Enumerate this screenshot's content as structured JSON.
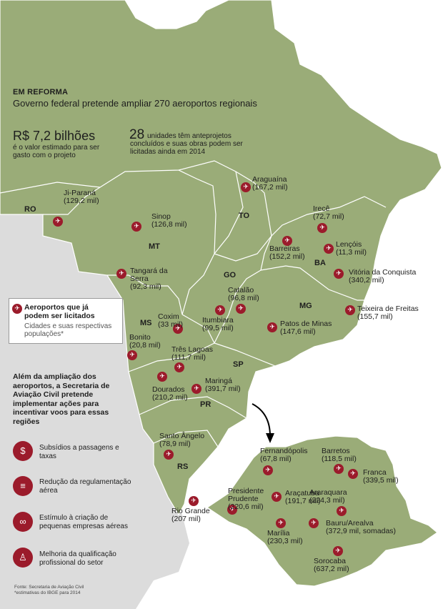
{
  "colors": {
    "map_fill": "#9aac78",
    "map_stroke": "#ffffff",
    "background": "#ffffff",
    "side_panel": "#dcdcdc",
    "pin": "#9b1b2b",
    "leader_line": "#000000"
  },
  "header": {
    "kicker": "EM REFORMA",
    "title": "Governo federal pretende ampliar 270 aeroportos regionais"
  },
  "cost": {
    "value": "R$ 7,2 bilhões",
    "text": "é o valor estimado para ser gasto com o projeto"
  },
  "units": {
    "number": "28",
    "text": "unidades têm anteprojetos concluídos e suas obras podem ser licitadas ainda em 2014"
  },
  "legend": {
    "icon": "airplane-icon",
    "title": "Aeroportos que já podem ser licitados",
    "subtitle": "Cidades e suas respectivas populações*"
  },
  "actions": {
    "intro": "Além da ampliação dos aeroportos, a Secretaria de Aviação Civil pretende implementar ações para incentivar voos para essas regiões",
    "items": [
      {
        "icon": "money-icon",
        "glyph": "$",
        "text": "Subsídios a passagens e taxas"
      },
      {
        "icon": "document-icon",
        "glyph": "≡",
        "text": "Redução da regulamentação aérea"
      },
      {
        "icon": "handshake-icon",
        "glyph": "∞",
        "text": "Estímulo à criação de pequenas empresas aéreas"
      },
      {
        "icon": "person-icon",
        "glyph": "♙",
        "text": "Melhoria da qualificação profissional do setor"
      }
    ]
  },
  "states": {
    "RO": "RO",
    "MT": "MT",
    "TO": "TO",
    "GO": "GO",
    "BA": "BA",
    "MG": "MG",
    "MS": "MS",
    "SP": "SP",
    "PR": "PR",
    "RS": "RS"
  },
  "cities": {
    "ji_parana": {
      "name": "Ji-Paraná",
      "pop": "(129,2 mil)"
    },
    "sinop": {
      "name": "Sinop",
      "pop": "(126,8 mil)"
    },
    "tangara": {
      "name": "Tangará da Serra",
      "pop": "(92,3 mil)"
    },
    "araguaina": {
      "name": "Araguaína",
      "pop": "(167,2 mil)"
    },
    "irece": {
      "name": "Irecê",
      "pop": "(72,7 mil)"
    },
    "barreiras": {
      "name": "Barreiras",
      "pop": "(152,2 mil)"
    },
    "lencois": {
      "name": "Lençóis",
      "pop": "(11,3 mil)"
    },
    "vitoria_conquista": {
      "name": "Vitória da Conquista",
      "pop": "(340,2 mil)"
    },
    "teixeira": {
      "name": "Teixeira de Freitas",
      "pop": "(155,7 mil)"
    },
    "catalao": {
      "name": "Catalão",
      "pop": "(96,8 mil)"
    },
    "itumbiara": {
      "name": "Itumbiara",
      "pop": "(99,5 mil)"
    },
    "patos": {
      "name": "Patos de Minas",
      "pop": "(147,6 mil)"
    },
    "coxim": {
      "name": "Coxim",
      "pop": "(33 mil)"
    },
    "bonito": {
      "name": "Bonito",
      "pop": "(20,8 mil)"
    },
    "tres_lagoas": {
      "name": "Três Lagoas",
      "pop": "(111,7 mil)"
    },
    "dourados": {
      "name": "Dourados",
      "pop": "(210,2 mil)"
    },
    "maringa": {
      "name": "Maringá",
      "pop": "(391,7 mil)"
    },
    "santo_angelo": {
      "name": "Santo Ângelo",
      "pop": "(78,9 mil)"
    },
    "rio_grande": {
      "name": "Rio Grande",
      "pop": "(207 mil)"
    },
    "fernandopolis": {
      "name": "Fernandópolis",
      "pop": "(67,8 mil)"
    },
    "barretos": {
      "name": "Barretos",
      "pop": "(118,5 mil)"
    },
    "franca": {
      "name": "Franca",
      "pop": "(339,5 mil)"
    },
    "presidente_prudente": {
      "name": "Presidente Prudente",
      "pop": "(220,6 mil)"
    },
    "aracatuba": {
      "name": "Araçatuba",
      "pop": "(191,7 mil)"
    },
    "araraquara": {
      "name": "Araraquara",
      "pop": "(224,3 mil)"
    },
    "marilia": {
      "name": "Marília",
      "pop": "(230,3 mil)"
    },
    "bauru": {
      "name": "Bauru/Arealva",
      "pop": "(372,9 mil, somadas)"
    },
    "sorocaba": {
      "name": "Sorocaba",
      "pop": "(637,2 mil)"
    }
  },
  "footnote": {
    "source": "Fonte: Secretaria de Aviação Civil",
    "note": "*estimativas do IBGE para 2014"
  }
}
